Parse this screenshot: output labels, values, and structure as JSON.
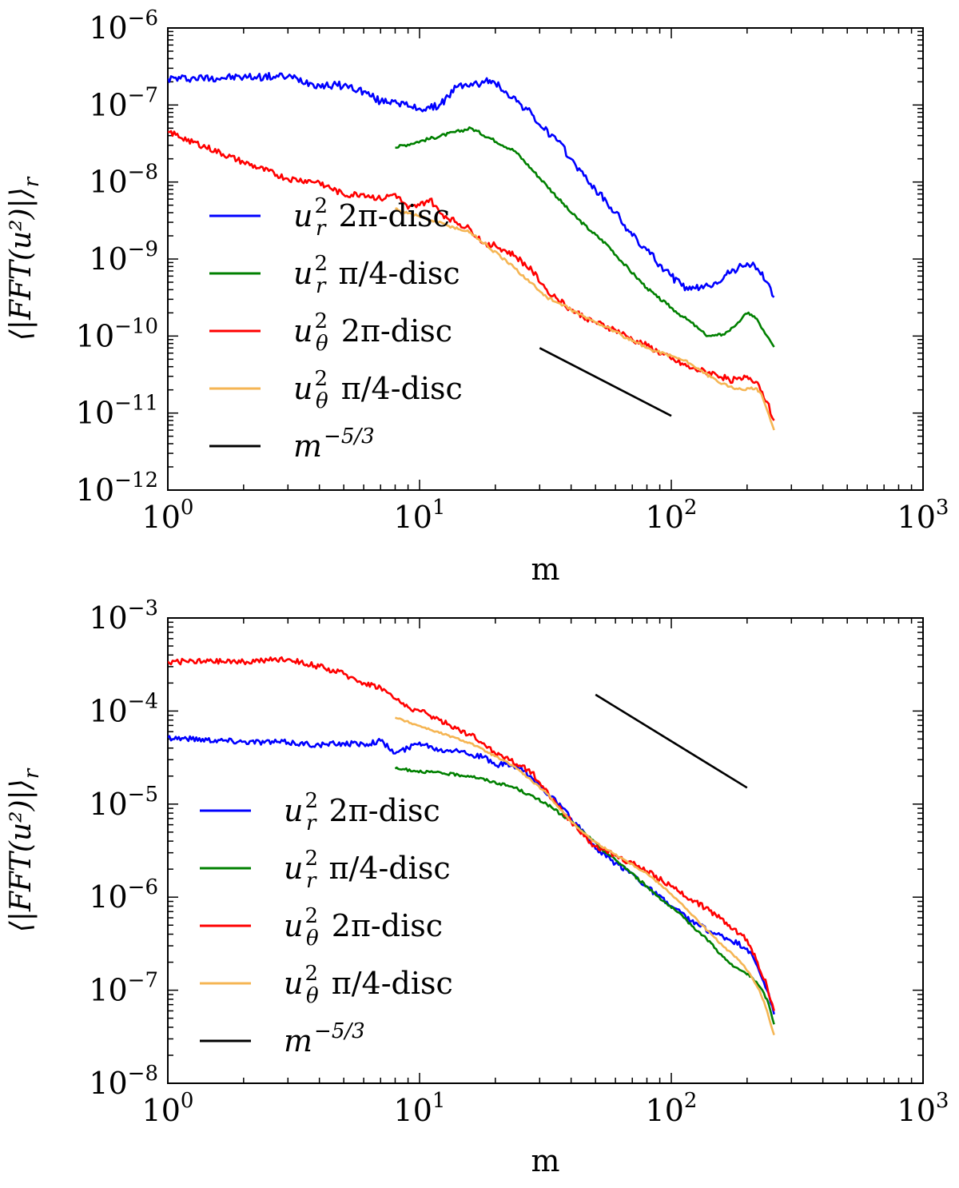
{
  "chart_data": [
    {
      "type": "line",
      "scale": {
        "x": "log",
        "y": "log"
      },
      "xlabel": "m",
      "ylabel": "⟨|FFT(u²)|⟩_r",
      "xlim": [
        1,
        1000
      ],
      "ylim": [
        1e-12,
        1e-06
      ],
      "x_ticks": [
        {
          "base": "10",
          "exp": "0"
        },
        {
          "base": "10",
          "exp": "1"
        },
        {
          "base": "10",
          "exp": "2"
        },
        {
          "base": "10",
          "exp": "3"
        }
      ],
      "y_ticks": [
        {
          "base": "10",
          "exp": "−12"
        },
        {
          "base": "10",
          "exp": "−11"
        },
        {
          "base": "10",
          "exp": "−10"
        },
        {
          "base": "10",
          "exp": "−9"
        },
        {
          "base": "10",
          "exp": "−8"
        },
        {
          "base": "10",
          "exp": "−7"
        },
        {
          "base": "10",
          "exp": "−6"
        }
      ],
      "legend_position": "left",
      "series": [
        {
          "name": "u_r^2 2π-disc",
          "color": "#0000ff",
          "noise": 0.05,
          "x": [
            1,
            2,
            3,
            4,
            5,
            6,
            7,
            8,
            9,
            10,
            11,
            12,
            13,
            14,
            15,
            16,
            17,
            18,
            19,
            20,
            22,
            25,
            28,
            30,
            35,
            40,
            45,
            50,
            60,
            70,
            80,
            90,
            100,
            110,
            120,
            130,
            140,
            150,
            170,
            190,
            200,
            220,
            240,
            256
          ],
          "y": [
            2.2e-07,
            2.3e-07,
            2.35e-07,
            1.8e-07,
            1.8e-07,
            1.5e-07,
            1.1e-07,
            1.15e-07,
            9.5e-08,
            9e-08,
            9e-08,
            1e-07,
            1.3e-07,
            1.7e-07,
            1.8e-07,
            1.9e-07,
            1.85e-07,
            1.95e-07,
            2.1e-07,
            1.9e-07,
            1.5e-07,
            1.05e-07,
            7.5e-08,
            5.5e-08,
            3.5e-08,
            2e-08,
            1.2e-08,
            8e-09,
            4e-09,
            2e-09,
            1.3e-09,
            8.5e-10,
            6e-10,
            4.5e-10,
            4e-10,
            4.2e-10,
            4.5e-10,
            5e-10,
            6.5e-10,
            8.2e-10,
            8.8e-10,
            7.5e-10,
            5e-10,
            3.2e-10
          ]
        },
        {
          "name": "u_r^2 π/4-disc",
          "color": "#008000",
          "noise": 0.02,
          "x": [
            8,
            16,
            24,
            32,
            40,
            48,
            56,
            64,
            72,
            80,
            88,
            96,
            104,
            112,
            120,
            128,
            136,
            144,
            152,
            160,
            168,
            176,
            184,
            192,
            200,
            208,
            216,
            224,
            232,
            240,
            248,
            256
          ],
          "y": [
            2.8e-08,
            5e-08,
            2.5e-08,
            9e-09,
            4e-09,
            2.3e-09,
            1.5e-09,
            9e-10,
            6e-10,
            4.2e-10,
            3.2e-10,
            2.6e-10,
            2.1e-10,
            1.75e-10,
            1.5e-10,
            1.25e-10,
            1.05e-10,
            1e-10,
            1.02e-10,
            1.05e-10,
            1.15e-10,
            1.3e-10,
            1.5e-10,
            1.75e-10,
            1.95e-10,
            1.9e-10,
            1.7e-10,
            1.45e-10,
            1.2e-10,
            1e-10,
            8.5e-11,
            7.2e-11
          ]
        },
        {
          "name": "u_θ^2 2π-disc",
          "color": "#ff0000",
          "noise": 0.04,
          "x": [
            1,
            2,
            3,
            4,
            5,
            6,
            7,
            8,
            9,
            10,
            11,
            12,
            14,
            16,
            18,
            20,
            24,
            28,
            32,
            40,
            50,
            60,
            70,
            80,
            100,
            120,
            150,
            170,
            190,
            200,
            220,
            240,
            256
          ],
          "y": [
            4.5e-08,
            1.8e-08,
            1.1e-08,
            1e-08,
            6.8e-09,
            7e-09,
            6e-09,
            7e-09,
            4.5e-09,
            5e-09,
            6e-09,
            4e-09,
            3e-09,
            2.4e-09,
            1.6e-09,
            1.5e-09,
            1.1e-09,
            7e-10,
            4e-10,
            2.2e-10,
            1.5e-10,
            1.2e-10,
            9e-11,
            7.5e-11,
            5e-11,
            3.8e-11,
            3.2e-11,
            2.7e-11,
            2.7e-11,
            3e-11,
            2.5e-11,
            1.4e-11,
            8e-12
          ]
        },
        {
          "name": "u_θ^2 π/4-disc",
          "color": "#f5b553",
          "noise": 0.02,
          "x": [
            8,
            16,
            24,
            32,
            40,
            48,
            56,
            64,
            72,
            80,
            88,
            96,
            104,
            112,
            120,
            128,
            136,
            144,
            152,
            160,
            168,
            176,
            184,
            192,
            200,
            208,
            216,
            224,
            232,
            240,
            248,
            256
          ],
          "y": [
            4.5e-09,
            2.2e-09,
            7.5e-10,
            3.2e-10,
            2.2e-10,
            1.6e-10,
            1.3e-10,
            1e-10,
            8.3e-11,
            7e-11,
            6.3e-11,
            5.8e-11,
            5.3e-11,
            4.8e-11,
            4.3e-11,
            3.8e-11,
            3.3e-11,
            2.9e-11,
            2.6e-11,
            2.4e-11,
            2.2e-11,
            2.1e-11,
            2.05e-11,
            2e-11,
            2.1e-11,
            2.15e-11,
            2.1e-11,
            1.9e-11,
            1.5e-11,
            1.1e-11,
            8e-12,
            6e-12
          ]
        },
        {
          "name": "m^{-5/3}",
          "color": "#000000",
          "noise": 0,
          "x": [
            30,
            100
          ],
          "y": [
            7e-11,
            9.2e-12
          ]
        }
      ],
      "legend": [
        {
          "base": "u",
          "sup": "2",
          "sub": "r",
          "desc": "2π-disc",
          "color": "#0000ff"
        },
        {
          "base": "u",
          "sup": "2",
          "sub": "r",
          "desc": "π/4-disc",
          "color": "#008000"
        },
        {
          "base": "u",
          "sup": "2",
          "sub": "θ",
          "desc": "2π-disc",
          "color": "#ff0000"
        },
        {
          "base": "u",
          "sup": "2",
          "sub": "θ",
          "desc": "π/4-disc",
          "color": "#f5b553"
        },
        {
          "base": "m",
          "sup": "−5/3",
          "sub": "",
          "desc": "",
          "color": "#000000"
        }
      ]
    },
    {
      "type": "line",
      "scale": {
        "x": "log",
        "y": "log"
      },
      "xlabel": "m",
      "ylabel": "⟨|FFT(u²)|⟩_r",
      "xlim": [
        1,
        1000
      ],
      "ylim": [
        1e-08,
        0.001
      ],
      "x_ticks": [
        {
          "base": "10",
          "exp": "0"
        },
        {
          "base": "10",
          "exp": "1"
        },
        {
          "base": "10",
          "exp": "2"
        },
        {
          "base": "10",
          "exp": "3"
        }
      ],
      "y_ticks": [
        {
          "base": "10",
          "exp": "−8"
        },
        {
          "base": "10",
          "exp": "−7"
        },
        {
          "base": "10",
          "exp": "−6"
        },
        {
          "base": "10",
          "exp": "−5"
        },
        {
          "base": "10",
          "exp": "−4"
        },
        {
          "base": "10",
          "exp": "−3"
        }
      ],
      "legend_position": "left",
      "series": [
        {
          "name": "u_r^2 2π-disc",
          "color": "#0000ff",
          "noise": 0.03,
          "x": [
            1,
            2,
            3,
            4,
            5,
            6,
            7,
            8,
            9,
            10,
            11,
            12,
            14,
            16,
            18,
            20,
            22,
            25,
            28,
            30,
            35,
            40,
            45,
            50,
            60,
            70,
            80,
            100,
            120,
            150,
            170,
            200,
            220,
            240,
            256
          ],
          "y": [
            5.2e-05,
            4.7e-05,
            4.6e-05,
            4.3e-05,
            4.5e-05,
            4.4e-05,
            4.8e-05,
            3.5e-05,
            4e-05,
            4.6e-05,
            4.2e-05,
            3.8e-05,
            3.9e-05,
            3.4e-05,
            3.2e-05,
            2.6e-05,
            2.7e-05,
            2.4e-05,
            1.9e-05,
            1.6e-05,
            1.05e-05,
            7e-06,
            5e-06,
            3.3e-06,
            2.3e-06,
            1.8e-06,
            1.3e-06,
            8e-07,
            5.5e-07,
            4e-07,
            3.5e-07,
            2.8e-07,
            1.8e-07,
            1e-07,
            5.5e-08
          ]
        },
        {
          "name": "u_r^2 π/4-disc",
          "color": "#008000",
          "noise": 0.015,
          "x": [
            8,
            16,
            24,
            32,
            40,
            48,
            56,
            64,
            80,
            96,
            112,
            128,
            144,
            160,
            176,
            192,
            208,
            224,
            240,
            256
          ],
          "y": [
            2.4e-05,
            2e-05,
            1.5e-05,
            1e-05,
            6.5e-06,
            4.2e-06,
            2.9e-06,
            2.2e-06,
            1.3e-06,
            8.5e-07,
            6e-07,
            4.3e-07,
            3.2e-07,
            2.3e-07,
            1.8e-07,
            1.6e-07,
            1.4e-07,
            1.1e-07,
            8e-08,
            4.3e-08
          ]
        },
        {
          "name": "u_θ^2 2π-disc",
          "color": "#ff0000",
          "noise": 0.03,
          "x": [
            1,
            2,
            3,
            4,
            5,
            6,
            7,
            8,
            9,
            10,
            12,
            14,
            16,
            18,
            20,
            22,
            25,
            28,
            30,
            35,
            40,
            45,
            50,
            60,
            70,
            80,
            100,
            120,
            150,
            170,
            200,
            220,
            240,
            256
          ],
          "y": [
            0.00034,
            0.00034,
            0.00036,
            0.0003,
            0.00025,
            0.0002,
            0.00018,
            0.000135,
            0.00011,
            0.0001,
            8e-05,
            6.5e-05,
            5.5e-05,
            4.5e-05,
            3.5e-05,
            3.2e-05,
            2.6e-05,
            2.2e-05,
            1.7e-05,
            1e-05,
            6.5e-06,
            4.5e-06,
            3.5e-06,
            2.8e-06,
            2.3e-06,
            1.9e-06,
            1.3e-06,
            9.5e-07,
            6.5e-07,
            5e-07,
            3.5e-07,
            2e-07,
            1.1e-07,
            6e-08
          ]
        },
        {
          "name": "u_θ^2 π/4-disc",
          "color": "#f5b553",
          "noise": 0.01,
          "x": [
            8,
            16,
            24,
            32,
            40,
            48,
            56,
            64,
            80,
            96,
            112,
            128,
            144,
            160,
            176,
            192,
            208,
            224,
            240,
            256
          ],
          "y": [
            8.5e-05,
            4.5e-05,
            2.5e-05,
            1.3e-05,
            6.5e-06,
            4.2e-06,
            3.2e-06,
            2.6e-06,
            1.8e-06,
            1.2e-06,
            8e-07,
            5.5e-07,
            4e-07,
            3e-07,
            2.4e-07,
            1.9e-07,
            1.4e-07,
            1e-07,
            6e-08,
            3.3e-08
          ]
        },
        {
          "name": "m^{-5/3}",
          "color": "#000000",
          "noise": 0,
          "x": [
            50,
            200
          ],
          "y": [
            0.00015,
            1.5e-05
          ]
        }
      ],
      "legend": [
        {
          "base": "u",
          "sup": "2",
          "sub": "r",
          "desc": "2π-disc",
          "color": "#0000ff"
        },
        {
          "base": "u",
          "sup": "2",
          "sub": "r",
          "desc": "π/4-disc",
          "color": "#008000"
        },
        {
          "base": "u",
          "sup": "2",
          "sub": "θ",
          "desc": "2π-disc",
          "color": "#ff0000"
        },
        {
          "base": "u",
          "sup": "2",
          "sub": "θ",
          "desc": "π/4-disc",
          "color": "#f5b553"
        },
        {
          "base": "m",
          "sup": "−5/3",
          "sub": "",
          "desc": "",
          "color": "#000000"
        }
      ]
    }
  ]
}
